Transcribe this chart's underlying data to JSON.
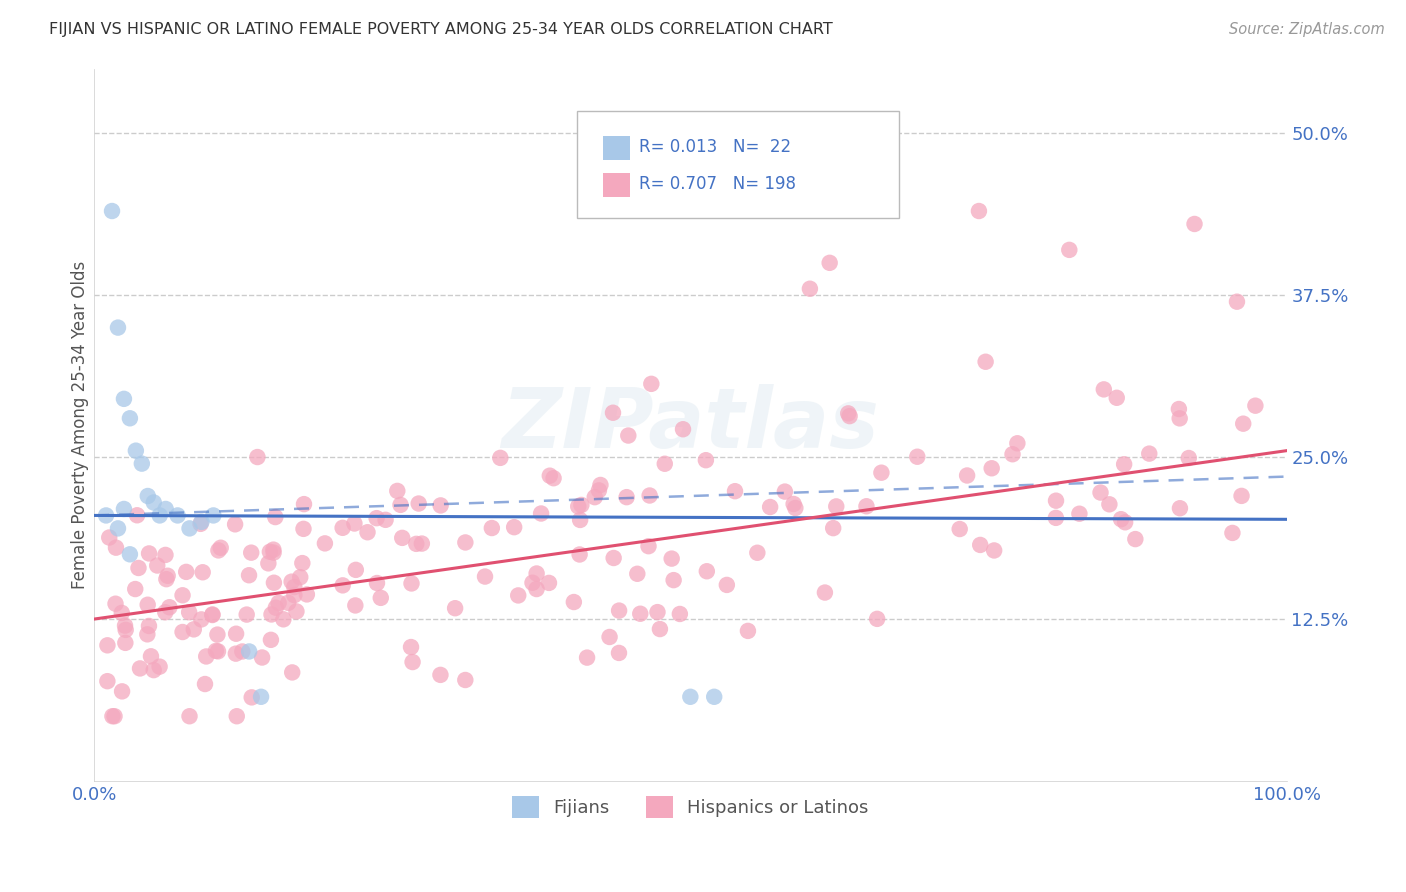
{
  "title": "FIJIAN VS HISPANIC OR LATINO FEMALE POVERTY AMONG 25-34 YEAR OLDS CORRELATION CHART",
  "source": "Source: ZipAtlas.com",
  "ylabel": "Female Poverty Among 25-34 Year Olds",
  "xlim": [
    0.0,
    1.0
  ],
  "ylim": [
    0.0,
    0.55
  ],
  "yticks": [
    0.125,
    0.25,
    0.375,
    0.5
  ],
  "ytick_labels": [
    "12.5%",
    "25.0%",
    "37.5%",
    "50.0%"
  ],
  "xtick_labels": [
    "0.0%",
    "100.0%"
  ],
  "fijian_color": "#a8c8e8",
  "hispanic_color": "#f4a8be",
  "fijian_line_color": "#4472c4",
  "hispanic_line_color": "#e05070",
  "fijian_dash_color": "#7aaad8",
  "fijian_R": 0.013,
  "fijian_N": 22,
  "hispanic_R": 0.707,
  "hispanic_N": 198,
  "background_color": "#ffffff",
  "grid_color": "#cccccc",
  "legend_labels": [
    "Fijians",
    "Hispanics or Latinos"
  ],
  "accent_color": "#4472c4"
}
